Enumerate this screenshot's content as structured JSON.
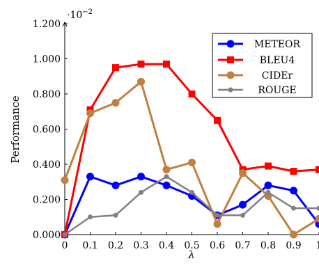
{
  "chart_data": {
    "type": "line",
    "title": "",
    "xlabel": "λ",
    "ylabel": "Performance",
    "y_multiplier": "·10",
    "y_multiplier_exp": "−2",
    "x": [
      0,
      0.1,
      0.2,
      0.3,
      0.4,
      0.5,
      0.6,
      0.7,
      0.8,
      0.9,
      1
    ],
    "x_tick_labels": [
      "0",
      "0.1",
      "0.2",
      "0.3",
      "0.4",
      "0.5",
      "0.6",
      "0.7",
      "0.8",
      "0.9",
      "1"
    ],
    "y_ticks": [
      0,
      0.2,
      0.4,
      0.6,
      0.8,
      1.0,
      1.2
    ],
    "y_tick_labels": [
      "0.000",
      "0.200",
      "0.400",
      "0.600",
      "0.800",
      "1.000",
      "1.200"
    ],
    "xlim": [
      0,
      1
    ],
    "ylim": [
      0,
      1.2
    ],
    "grid": false,
    "legend_position": "top-right",
    "series": [
      {
        "name": "METEOR",
        "color": "#0000ff",
        "marker": "circle",
        "values": [
          0.0,
          0.33,
          0.28,
          0.33,
          0.28,
          0.22,
          0.11,
          0.17,
          0.28,
          0.25,
          0.06
        ]
      },
      {
        "name": "BLEU4",
        "color": "#ff0000",
        "marker": "square",
        "values": [
          0.0,
          0.71,
          0.95,
          0.97,
          0.97,
          0.8,
          0.65,
          0.37,
          0.39,
          0.36,
          0.37
        ]
      },
      {
        "name": "CIDEr",
        "color": "#bf8040",
        "marker": "circle",
        "values": [
          0.31,
          0.69,
          0.75,
          0.87,
          0.37,
          0.41,
          0.06,
          0.35,
          0.22,
          0.0,
          0.09
        ]
      },
      {
        "name": "ROUGE",
        "color": "#808080",
        "marker": "small-circle",
        "values": [
          0.0,
          0.1,
          0.11,
          0.24,
          0.33,
          0.24,
          0.11,
          0.11,
          0.24,
          0.15,
          0.15
        ]
      }
    ]
  }
}
